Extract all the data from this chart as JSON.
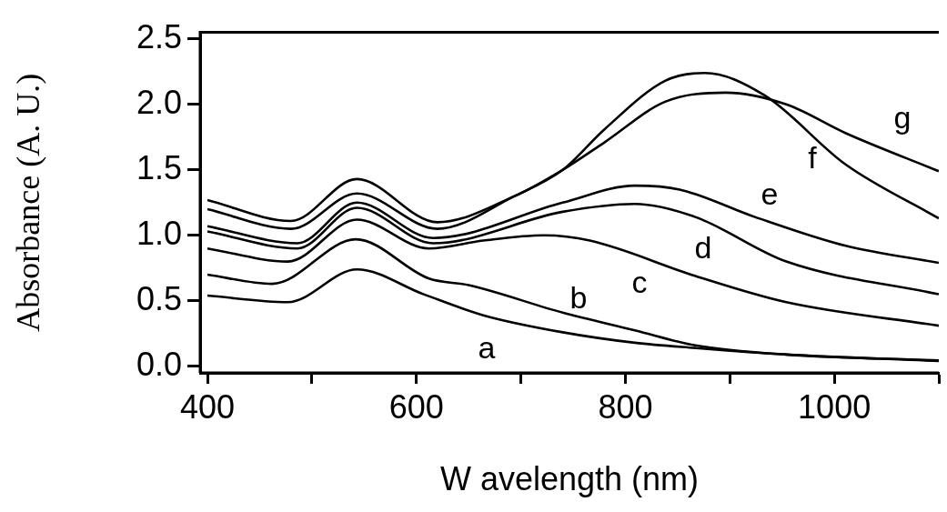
{
  "chart_data": {
    "type": "line",
    "xlabel": "W avelength (nm)",
    "ylabel": "Absorbance (A. U.)",
    "xlim": [
      393,
      1100
    ],
    "ylim": [
      -0.05,
      2.55
    ],
    "xticks": [
      400,
      {
        "value": 500,
        "label": null
      },
      600,
      {
        "value": 700,
        "label": null
      },
      800,
      {
        "value": 900,
        "label": null
      },
      1000,
      {
        "value": 1100,
        "label": null
      }
    ],
    "yticks": [
      {
        "value": 0,
        "label": "0.0"
      },
      0.5,
      {
        "value": 1,
        "label": "1.0"
      },
      1.5,
      {
        "value": 2,
        "label": "2.0"
      },
      2.5
    ],
    "grid": false,
    "series": [
      {
        "color": "#000000",
        "x": [
          400,
          477,
          543,
          607,
          664,
          740,
          809,
          867,
          954,
          1100
        ],
        "values": [
          0.54,
          0.49,
          0.74,
          0.55,
          0.39,
          0.26,
          0.18,
          0.14,
          0.09,
          0.04
        ]
      },
      {
        "color": "#000000",
        "x": [
          400,
          462,
          542,
          612,
          650,
          740,
          809,
          867,
          954,
          1100
        ],
        "values": [
          0.7,
          0.63,
          0.97,
          0.67,
          0.62,
          0.41,
          0.275,
          0.16,
          0.09,
          0.045
        ]
      },
      {
        "color": "#000000",
        "x": [
          400,
          477,
          543,
          612,
          664,
          722,
          766,
          867,
          954,
          1100
        ],
        "values": [
          0.9,
          0.8,
          1.12,
          0.9,
          0.96,
          1.0,
          0.96,
          0.69,
          0.49,
          0.31
        ]
      },
      {
        "color": "#000000",
        "x": [
          400,
          486,
          543,
          616,
          740,
          809,
          867,
          954,
          1100
        ],
        "values": [
          1.03,
          0.9,
          1.21,
          0.94,
          1.18,
          1.24,
          1.14,
          0.8,
          0.55
        ]
      },
      {
        "color": "#000000",
        "x": [
          400,
          486,
          543,
          616,
          740,
          809,
          852,
          924,
          1011,
          1100
        ],
        "values": [
          1.07,
          0.94,
          1.25,
          0.98,
          1.25,
          1.38,
          1.35,
          1.14,
          0.92,
          0.79
        ]
      },
      {
        "color": "#000000",
        "x": [
          400,
          480,
          543,
          620,
          694,
          740,
          780,
          838,
          876,
          933,
          1011,
          1100
        ],
        "values": [
          1.2,
          1.05,
          1.32,
          1.05,
          1.3,
          1.5,
          1.81,
          2.18,
          2.24,
          2.07,
          1.54,
          1.13
        ]
      },
      {
        "color": "#000000",
        "x": [
          400,
          480,
          543,
          620,
          694,
          740,
          780,
          838,
          896,
          954,
          1011,
          1100
        ],
        "values": [
          1.27,
          1.11,
          1.43,
          1.1,
          1.3,
          1.5,
          1.71,
          2.02,
          2.09,
          2.0,
          1.78,
          1.49
        ]
      }
    ],
    "annotations": [
      "a",
      "b",
      "c",
      "d",
      "e",
      "f",
      "g"
    ]
  }
}
